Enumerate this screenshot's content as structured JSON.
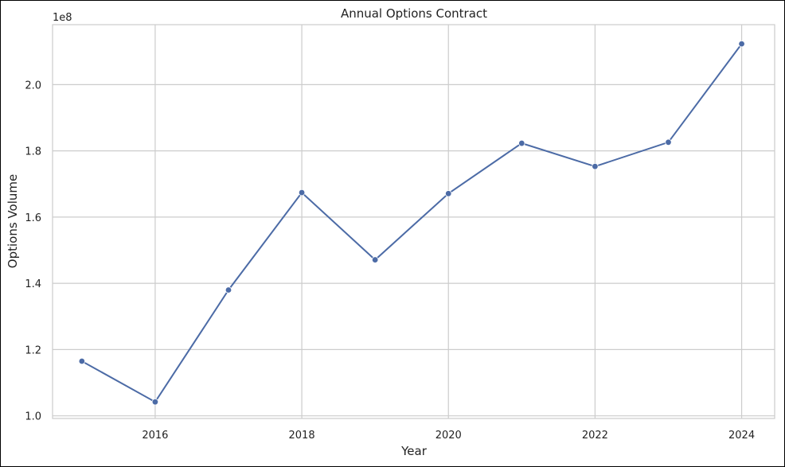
{
  "chart_data": {
    "type": "line",
    "title": "Annual Options Contract",
    "xlabel": "Year",
    "ylabel": "Options Volume",
    "offset_label": "1e8",
    "x": [
      2015,
      2016,
      2017,
      2018,
      2019,
      2020,
      2021,
      2022,
      2023,
      2024
    ],
    "values": [
      116500000,
      104200000,
      138000000,
      167400000,
      147100000,
      167100000,
      182300000,
      175300000,
      182600000,
      212300000
    ],
    "xlim": [
      2014.6,
      2024.45
    ],
    "ylim": [
      99200000,
      218100000
    ],
    "xticks": [
      2016,
      2018,
      2020,
      2022,
      2024
    ],
    "xtick_labels": [
      "2016",
      "2018",
      "2020",
      "2022",
      "2024"
    ],
    "yticks": [
      100000000,
      120000000,
      140000000,
      160000000,
      180000000,
      200000000
    ],
    "ytick_labels": [
      "1.0",
      "1.2",
      "1.4",
      "1.6",
      "1.8",
      "2.0"
    ],
    "grid": true,
    "line_color": "#4c6ba6",
    "grid_color": "#cccccc"
  }
}
